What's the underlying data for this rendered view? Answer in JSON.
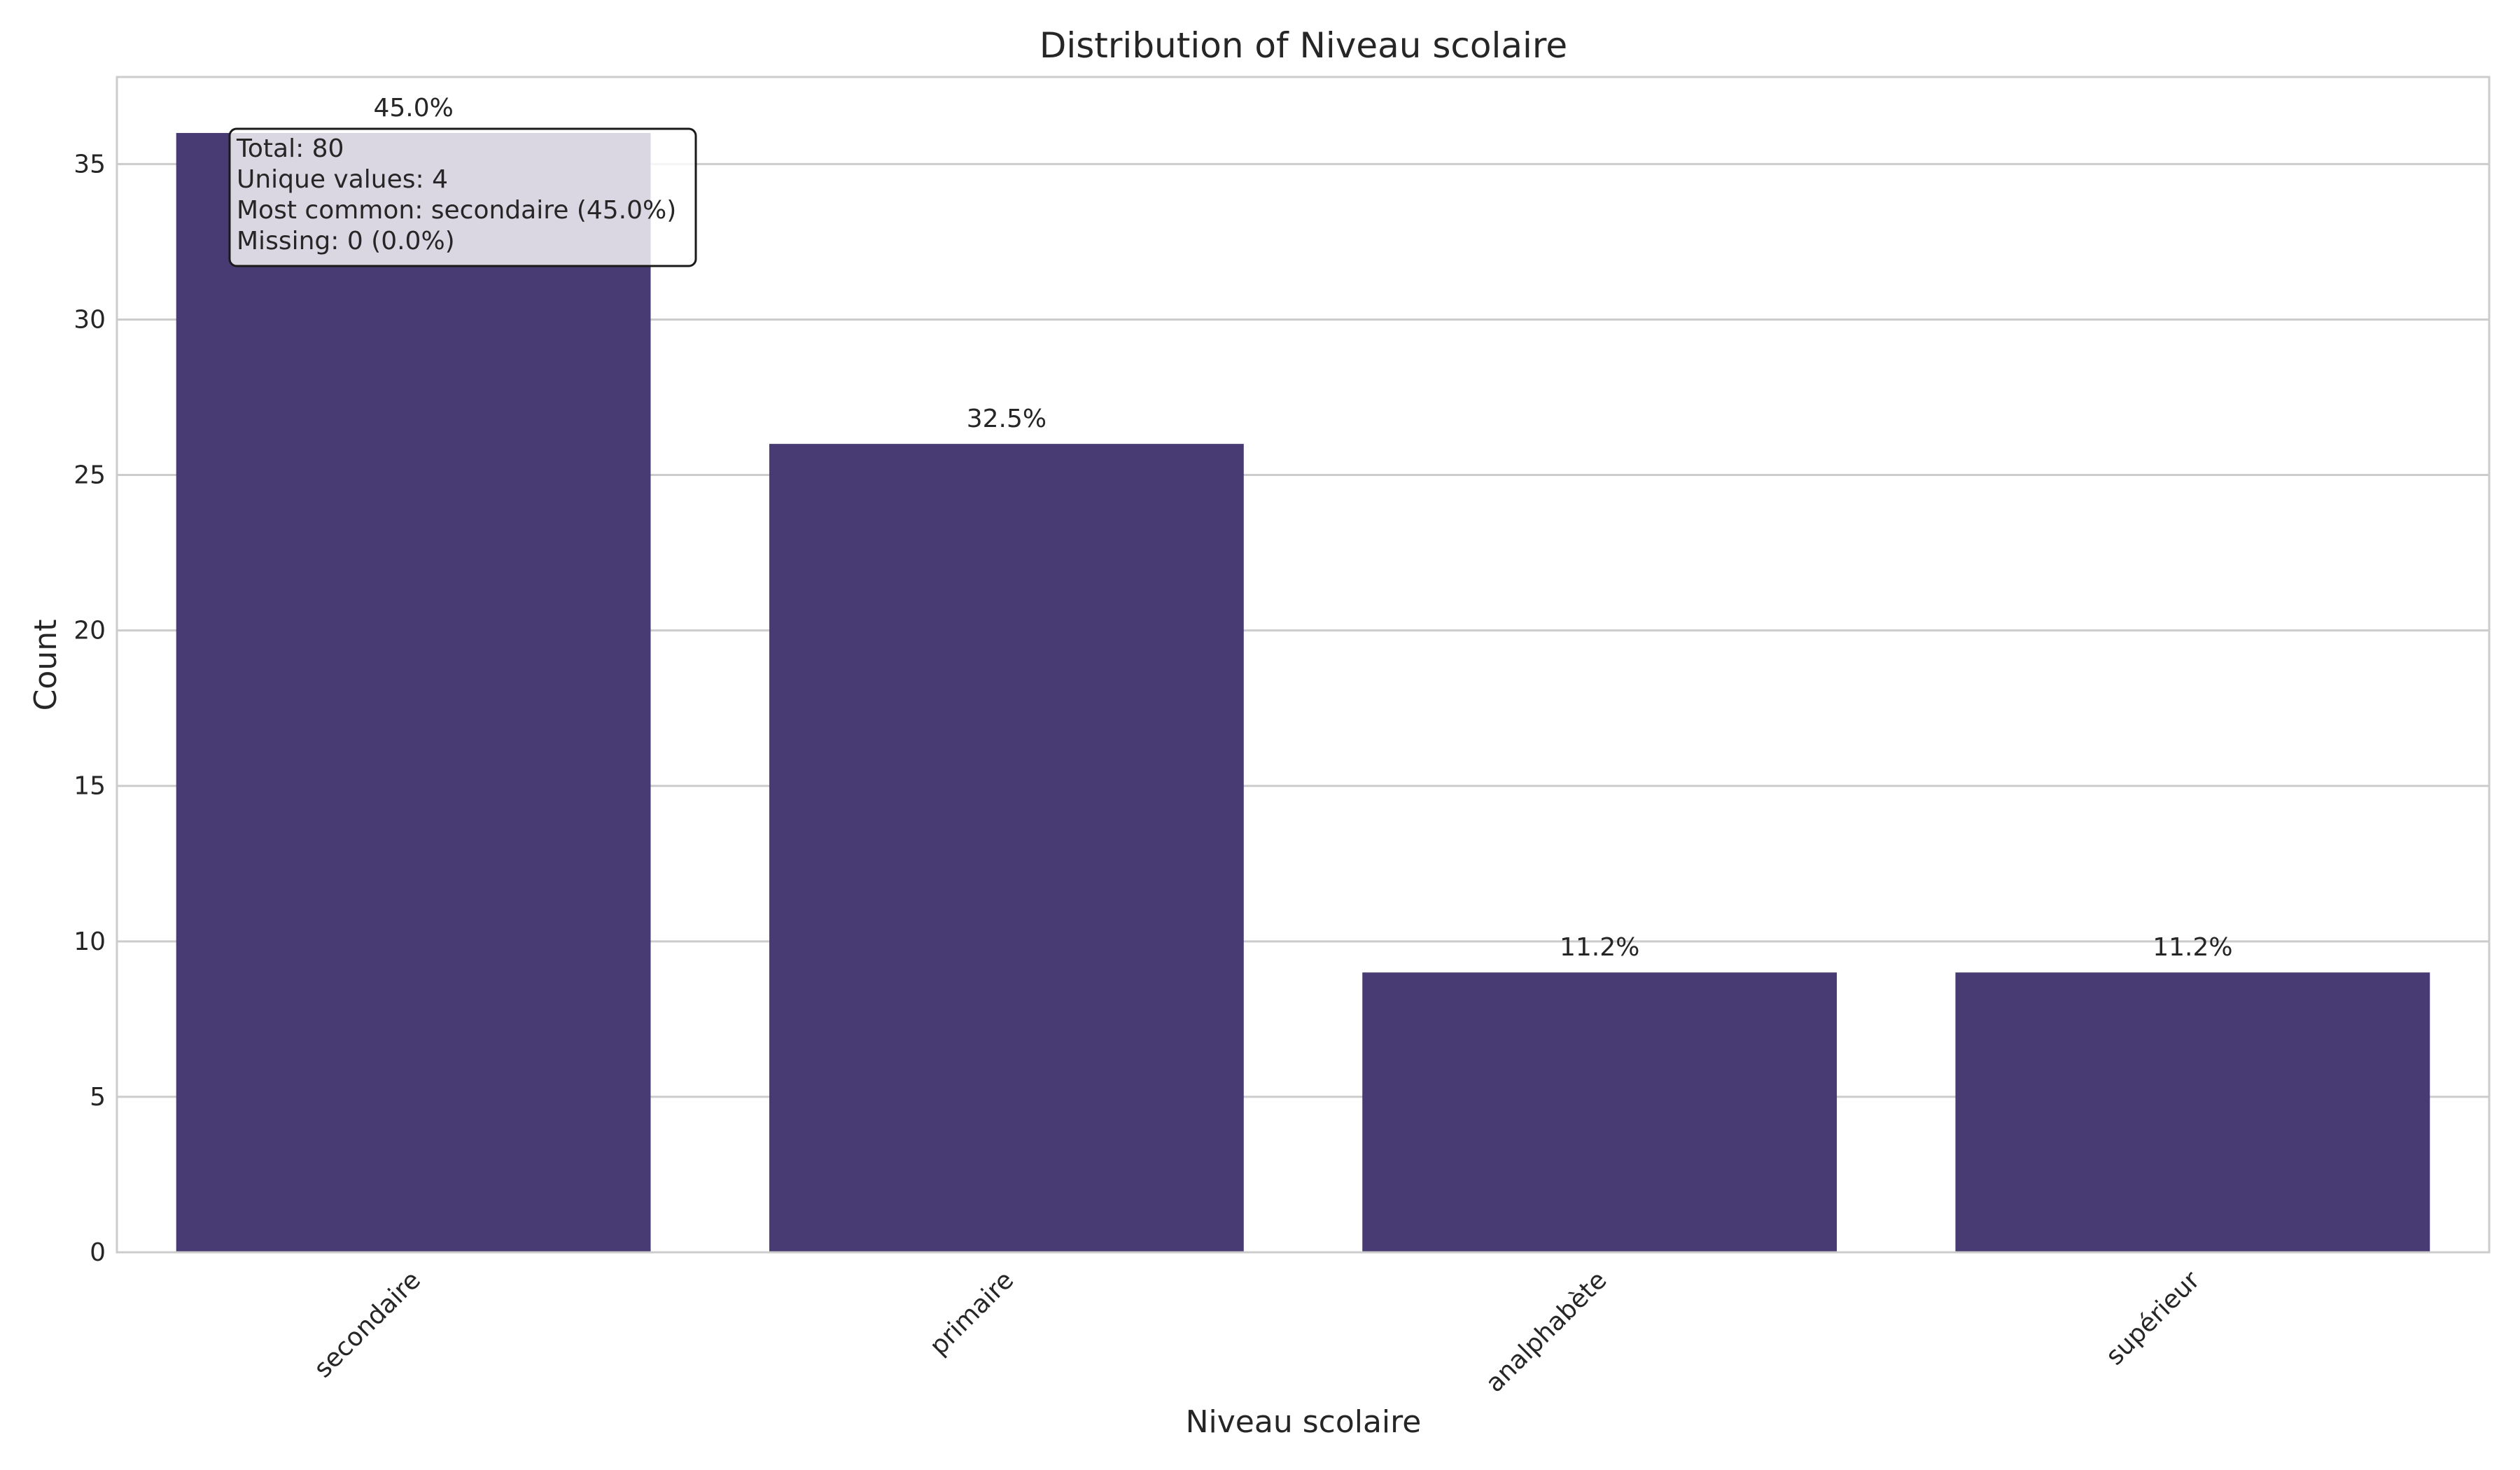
{
  "chart_data": {
    "type": "bar",
    "title": "Distribution of Niveau scolaire",
    "xlabel": "Niveau scolaire",
    "ylabel": "Count",
    "categories": [
      "secondaire",
      "primaire",
      "analphabète",
      "supérieur"
    ],
    "values": [
      36,
      26,
      9,
      9
    ],
    "bar_labels": [
      "45.0%",
      "32.5%",
      "11.2%",
      "11.2%"
    ],
    "ylim": [
      0,
      37.8
    ],
    "yticks": [
      0,
      5,
      10,
      15,
      20,
      25,
      30,
      35
    ],
    "grid": "horizontal",
    "bar_color": "#483a73",
    "stats_box": [
      "Total: 80",
      "Unique values: 4",
      "Most common: secondaire (45.0%)",
      "Missing: 0 (0.0%)"
    ]
  }
}
